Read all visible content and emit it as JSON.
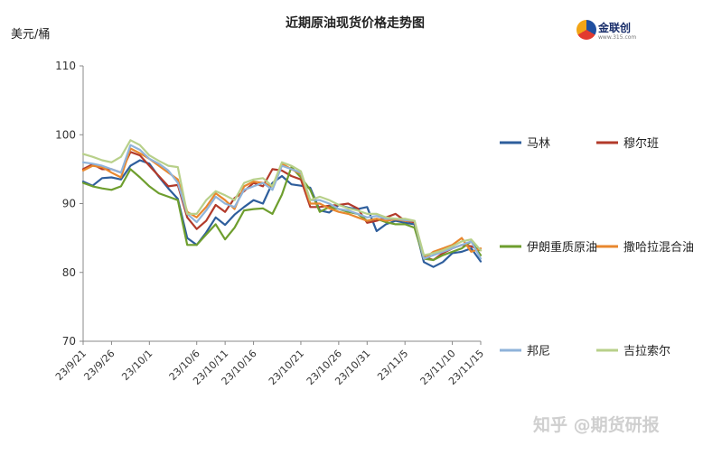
{
  "watermark": "知乎 @期货研报",
  "logo": {
    "text": "金联创",
    "sub": "www.315.com"
  },
  "chart_data": {
    "type": "line",
    "title": "近期原油现货价格走势图",
    "ylabel": "美元/桶",
    "xlabel": "",
    "ylim": [
      70,
      110
    ],
    "yticks": [
      70,
      80,
      90,
      100,
      110
    ],
    "categories": [
      "23/9/21",
      "23/9/22",
      "23/9/25",
      "23/9/26",
      "23/9/27",
      "23/9/28",
      "23/9/29",
      "23/10/1",
      "23/10/2",
      "23/10/3",
      "23/10/4",
      "23/10/5",
      "23/10/6",
      "23/10/9",
      "23/10/10",
      "23/10/11",
      "23/10/12",
      "23/10/13",
      "23/10/16",
      "23/10/17",
      "23/10/18",
      "23/10/19",
      "23/10/20",
      "23/10/21",
      "23/10/23",
      "23/10/24",
      "23/10/25",
      "23/10/26",
      "23/10/27",
      "23/10/30",
      "23/10/31",
      "23/11/1",
      "23/11/2",
      "23/11/3",
      "23/11/5",
      "23/11/6",
      "23/11/7",
      "23/11/8",
      "23/11/9",
      "23/11/10",
      "23/11/13",
      "23/11/14",
      "23/11/15"
    ],
    "xtick_labels": [
      "23/9/21",
      "23/9/26",
      "23/10/1",
      "23/10/6",
      "23/10/11",
      "23/10/16",
      "23/10/21",
      "23/10/26",
      "23/10/31",
      "23/11/5",
      "23/11/10",
      "23/11/15"
    ],
    "series": [
      {
        "name": "马林",
        "color": "#2e5e9c",
        "values": [
          93.2,
          92.6,
          93.7,
          93.8,
          93.5,
          95.5,
          96.3,
          95.8,
          93.9,
          92.2,
          90.7,
          85.0,
          84.0,
          85.8,
          88.0,
          86.9,
          88.4,
          89.5,
          90.5,
          90.0,
          93.0,
          94.0,
          92.8,
          92.6,
          92.3,
          89.0,
          88.7,
          89.8,
          89.4,
          89.2,
          89.5,
          86.0,
          87.0,
          87.5,
          87.2,
          87.0,
          81.5,
          80.8,
          81.5,
          82.8,
          83.0,
          83.5,
          81.6
        ]
      },
      {
        "name": "穆尔班",
        "color": "#b23a2a",
        "values": [
          95.0,
          95.7,
          95.0,
          95.0,
          94.5,
          97.5,
          97.0,
          95.5,
          94.0,
          92.5,
          92.7,
          88.0,
          86.3,
          87.5,
          89.8,
          88.8,
          90.8,
          91.8,
          93.0,
          92.5,
          95.0,
          94.8,
          94.0,
          93.5,
          89.5,
          89.5,
          89.7,
          89.8,
          90.0,
          89.3,
          87.2,
          87.5,
          88.0,
          88.5,
          87.5,
          87.3,
          82.3,
          81.8,
          82.8,
          83.5,
          84.0,
          83.8,
          83.2
        ]
      },
      {
        "name": "伊朗重质原油",
        "color": "#6e9e2e",
        "values": [
          93.0,
          92.5,
          92.2,
          92.0,
          92.5,
          95.0,
          93.8,
          92.5,
          91.5,
          91.0,
          90.5,
          84.0,
          84.0,
          85.5,
          87.0,
          84.8,
          86.5,
          89.0,
          89.2,
          89.3,
          88.5,
          91.3,
          95.3,
          93.8,
          92.0,
          88.8,
          89.5,
          89.2,
          88.8,
          88.5,
          87.5,
          87.8,
          87.3,
          87.0,
          87.0,
          86.5,
          82.0,
          81.8,
          82.5,
          83.0,
          83.5,
          84.5,
          82.5
        ]
      },
      {
        "name": "撒哈拉混合油",
        "color": "#e8872e",
        "values": [
          94.8,
          95.5,
          95.3,
          94.5,
          93.8,
          98.0,
          97.3,
          96.5,
          95.5,
          94.5,
          93.5,
          88.8,
          88.0,
          89.5,
          91.5,
          90.5,
          89.2,
          92.5,
          93.2,
          93.0,
          92.5,
          95.8,
          95.0,
          94.3,
          90.0,
          90.0,
          89.3,
          88.8,
          88.5,
          88.0,
          87.5,
          87.8,
          87.5,
          87.7,
          87.5,
          87.5,
          82.0,
          83.0,
          83.5,
          84.0,
          85.0,
          83.0,
          83.5
        ]
      },
      {
        "name": "邦尼",
        "color": "#8fb3da",
        "values": [
          96.0,
          95.8,
          95.5,
          95.0,
          94.5,
          98.5,
          97.8,
          96.5,
          95.8,
          94.8,
          93.0,
          88.5,
          87.3,
          89.0,
          91.0,
          90.0,
          89.5,
          92.0,
          92.5,
          93.0,
          92.0,
          95.5,
          95.0,
          94.5,
          90.5,
          90.5,
          90.0,
          89.2,
          89.0,
          88.5,
          88.0,
          88.2,
          87.8,
          87.8,
          87.6,
          87.5,
          82.0,
          82.5,
          83.0,
          83.5,
          84.0,
          84.5,
          82.0
        ]
      },
      {
        "name": "吉拉索尔",
        "color": "#b8d08a",
        "values": [
          97.2,
          96.8,
          96.3,
          96.0,
          96.8,
          99.2,
          98.5,
          97.0,
          96.2,
          95.5,
          95.3,
          88.5,
          88.5,
          90.5,
          91.8,
          91.2,
          90.5,
          93.0,
          93.5,
          93.7,
          92.5,
          96.0,
          95.5,
          94.7,
          90.5,
          91.0,
          90.5,
          89.8,
          89.3,
          89.0,
          88.5,
          88.5,
          88.0,
          87.8,
          87.8,
          87.5,
          82.5,
          82.8,
          83.2,
          83.8,
          84.5,
          84.8,
          83.2
        ]
      }
    ],
    "legend_placement": "right",
    "grid": false
  }
}
